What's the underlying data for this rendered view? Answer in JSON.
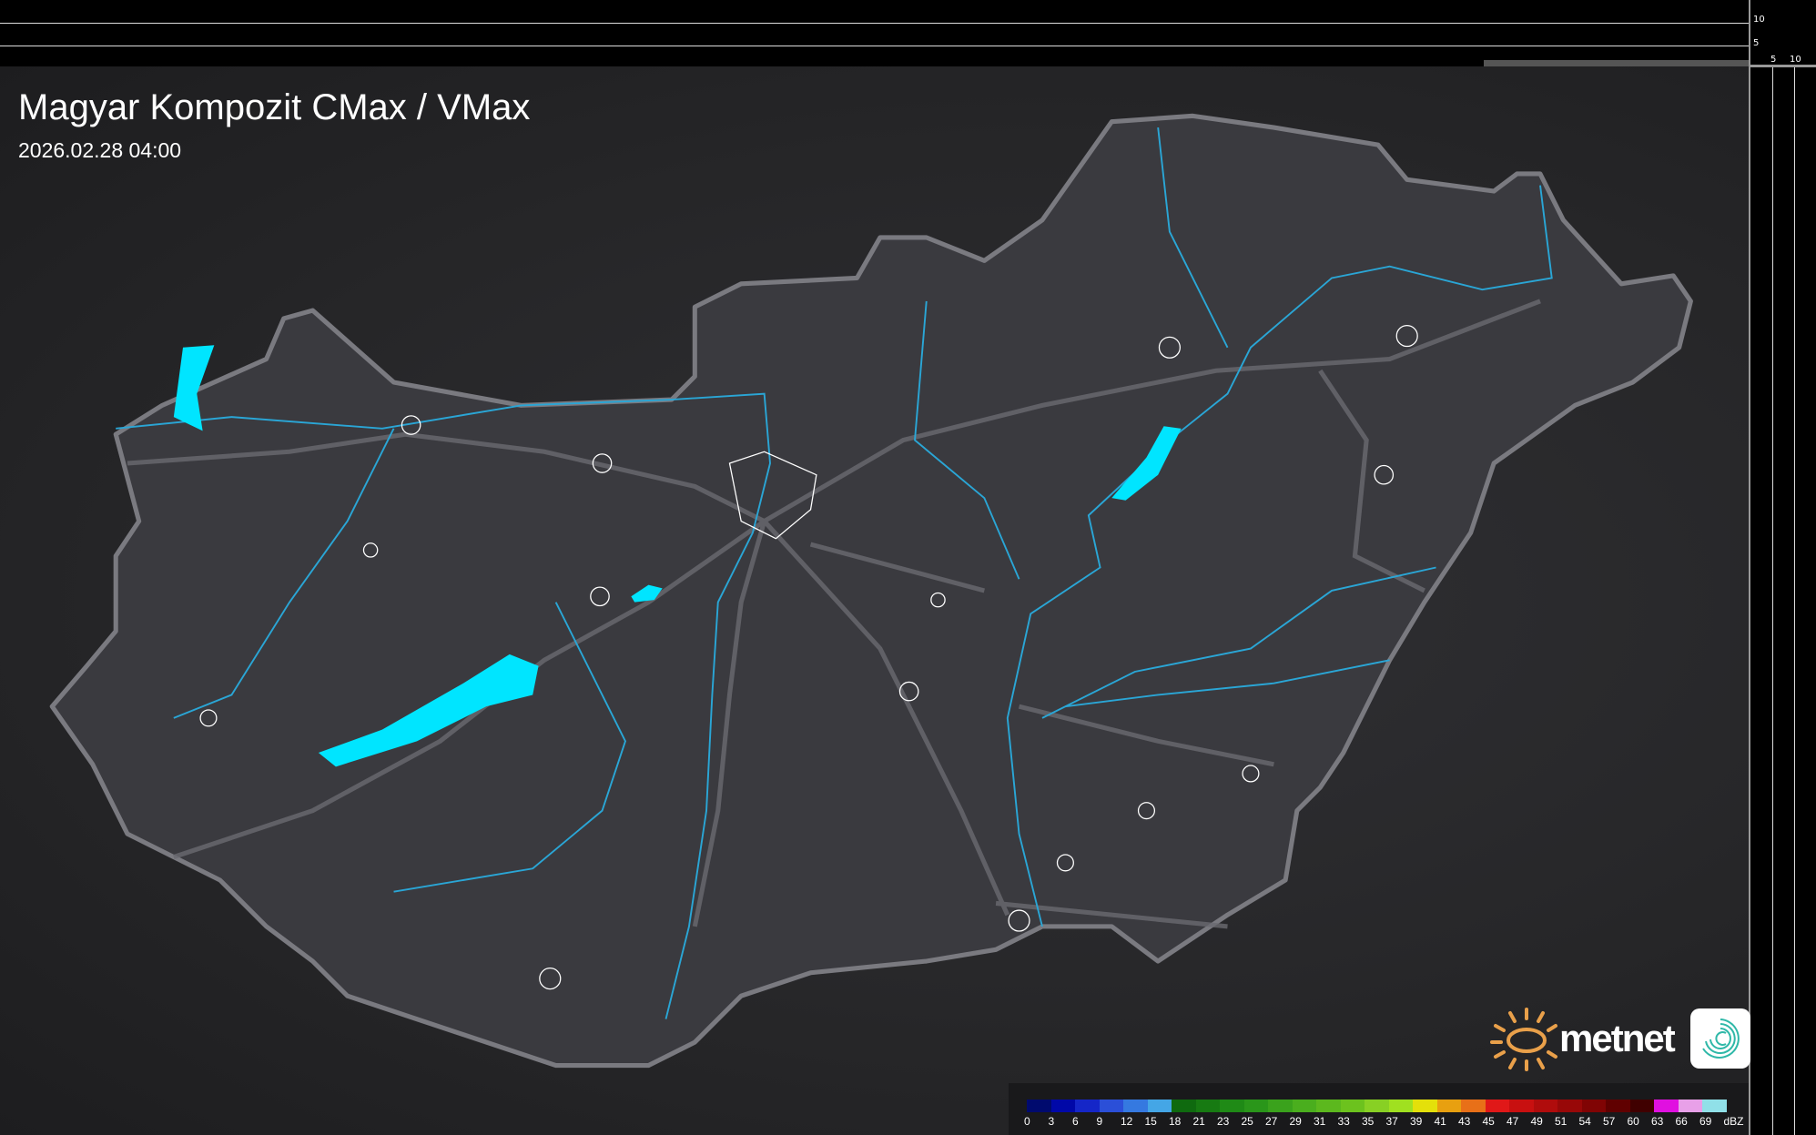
{
  "header": {
    "title": "Magyar Kompozit CMax / VMax",
    "timestamp": "2026.02.28 04:00"
  },
  "axes": {
    "vertical_ticks": [
      "10",
      "5"
    ],
    "horizontal_ticks": [
      "5",
      "10"
    ]
  },
  "brand": {
    "name": "metnet",
    "sun_color": "#e9a04a",
    "app_icon": "swirl-icon",
    "app_icon_color": "#2fb8a8"
  },
  "map": {
    "lake_color": "#00e5ff",
    "river_color": "#2aa6d6",
    "country_fill": "#3a3a3f",
    "border_color": "#7a7a80"
  },
  "legend": {
    "unit": "dBZ",
    "labels": [
      "0",
      "3",
      "6",
      "9",
      "12",
      "15",
      "18",
      "21",
      "23",
      "25",
      "27",
      "29",
      "31",
      "33",
      "35",
      "37",
      "39",
      "41",
      "43",
      "45",
      "47",
      "49",
      "51",
      "54",
      "57",
      "60",
      "63",
      "66",
      "69"
    ],
    "colors": [
      "#000a6e",
      "#0008a8",
      "#1526c8",
      "#2b4fd8",
      "#3579e0",
      "#44a6e6",
      "#0f6a0f",
      "#177a12",
      "#1f8a16",
      "#2a961a",
      "#3aa21c",
      "#4aae1e",
      "#5cb81e",
      "#6cc21e",
      "#88d024",
      "#a0e020",
      "#e4e00a",
      "#e8a010",
      "#e87018",
      "#e01818",
      "#c81010",
      "#b00c0c",
      "#980808",
      "#800404",
      "#600000",
      "#400000",
      "#e010e0",
      "#e8a0e8",
      "#90e0e8"
    ]
  }
}
